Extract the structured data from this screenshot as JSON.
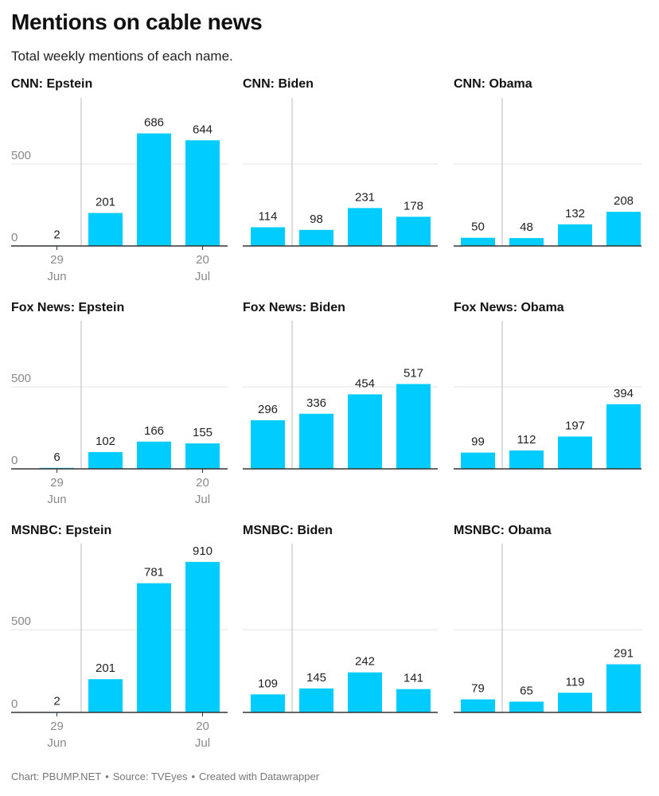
{
  "title": "Mentions on cable news",
  "subtitle": "Total weekly mentions of each name.",
  "footer": {
    "chart_label": "Chart: PBUMP.NET",
    "separator": "•",
    "source": "Source: TVEyes",
    "created": "Created with Datawrapper"
  },
  "colors": {
    "bar": "#00ccff",
    "axis": "#333333",
    "grid": "#e3e3e3",
    "marker": "#b8b8b8",
    "tick_text": "#888888",
    "label_text": "#222222"
  },
  "chart_data": [
    {
      "type": "bar",
      "title": "CNN: Epstein",
      "values": [
        2,
        201,
        686,
        644
      ],
      "y_ticks": [
        0,
        500
      ],
      "x_ticks": [
        {
          "index": 0,
          "line1": "29",
          "line2": "Jun"
        },
        {
          "index": 3,
          "line1": "20",
          "line2": "Jul"
        }
      ],
      "marker_between": [
        0,
        1
      ]
    },
    {
      "type": "bar",
      "title": "CNN: Biden",
      "values": [
        114,
        98,
        231,
        178
      ],
      "y_ticks": [],
      "x_ticks": [],
      "marker_between": [
        0,
        1
      ]
    },
    {
      "type": "bar",
      "title": "CNN: Obama",
      "values": [
        50,
        48,
        132,
        208
      ],
      "y_ticks": [],
      "x_ticks": [],
      "marker_between": [
        0,
        1
      ]
    },
    {
      "type": "bar",
      "title": "Fox News: Epstein",
      "values": [
        6,
        102,
        166,
        155
      ],
      "y_ticks": [
        0,
        500
      ],
      "x_ticks": [
        {
          "index": 0,
          "line1": "29",
          "line2": "Jun"
        },
        {
          "index": 3,
          "line1": "20",
          "line2": "Jul"
        }
      ],
      "marker_between": [
        0,
        1
      ]
    },
    {
      "type": "bar",
      "title": "Fox News: Biden",
      "values": [
        296,
        336,
        454,
        517
      ],
      "y_ticks": [],
      "x_ticks": [],
      "marker_between": [
        0,
        1
      ]
    },
    {
      "type": "bar",
      "title": "Fox News: Obama",
      "values": [
        99,
        112,
        197,
        394
      ],
      "y_ticks": [],
      "x_ticks": [],
      "marker_between": [
        0,
        1
      ]
    },
    {
      "type": "bar",
      "title": "MSNBC: Epstein",
      "values": [
        2,
        201,
        781,
        910
      ],
      "y_ticks": [
        0,
        500
      ],
      "x_ticks": [
        {
          "index": 0,
          "line1": "29",
          "line2": "Jun"
        },
        {
          "index": 3,
          "line1": "20",
          "line2": "Jul"
        }
      ],
      "marker_between": [
        0,
        1
      ]
    },
    {
      "type": "bar",
      "title": "MSNBC: Biden",
      "values": [
        109,
        145,
        242,
        141
      ],
      "y_ticks": [],
      "x_ticks": [],
      "marker_between": [
        0,
        1
      ]
    },
    {
      "type": "bar",
      "title": "MSNBC: Obama",
      "values": [
        79,
        65,
        119,
        291
      ],
      "y_ticks": [],
      "x_ticks": [],
      "marker_between": [
        0,
        1
      ]
    }
  ]
}
